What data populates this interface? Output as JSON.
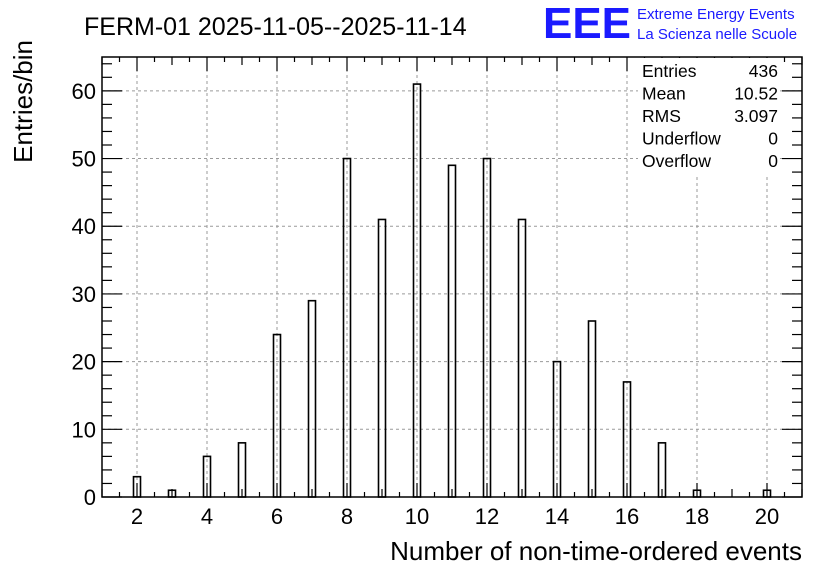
{
  "header": {
    "title": "FERM-01 2025-11-05--2025-11-14",
    "logo_text": "EEE",
    "logo_line1": "Extreme Energy Events",
    "logo_line2": "La Scienza nelle Scuole"
  },
  "stats": [
    {
      "label": "Entries",
      "value": "436"
    },
    {
      "label": "Mean",
      "value": "10.52"
    },
    {
      "label": "RMS",
      "value": "3.097"
    },
    {
      "label": "Underflow",
      "value": "0"
    },
    {
      "label": "Overflow",
      "value": "0"
    }
  ],
  "colors": {
    "logo": "#1a1aff",
    "bar_stroke": "#000000",
    "grid": "#9a9a9a"
  },
  "chart_data": {
    "type": "bar",
    "title": "FERM-01 2025-11-05--2025-11-14",
    "xlabel": "Number of non-time-ordered events",
    "ylabel": "Entries/bin",
    "xlim": [
      1,
      21
    ],
    "ylim": [
      0,
      65
    ],
    "grid": true,
    "x_ticks": [
      2,
      4,
      6,
      8,
      10,
      12,
      14,
      16,
      18,
      20
    ],
    "y_ticks": [
      0,
      10,
      20,
      30,
      40,
      50,
      60
    ],
    "x": [
      2,
      3,
      4,
      5,
      6,
      7,
      8,
      9,
      10,
      11,
      12,
      13,
      14,
      15,
      16,
      17,
      18,
      20
    ],
    "values": [
      3,
      1,
      6,
      8,
      24,
      29,
      50,
      41,
      61,
      49,
      50,
      41,
      20,
      26,
      17,
      8,
      1,
      1
    ]
  }
}
